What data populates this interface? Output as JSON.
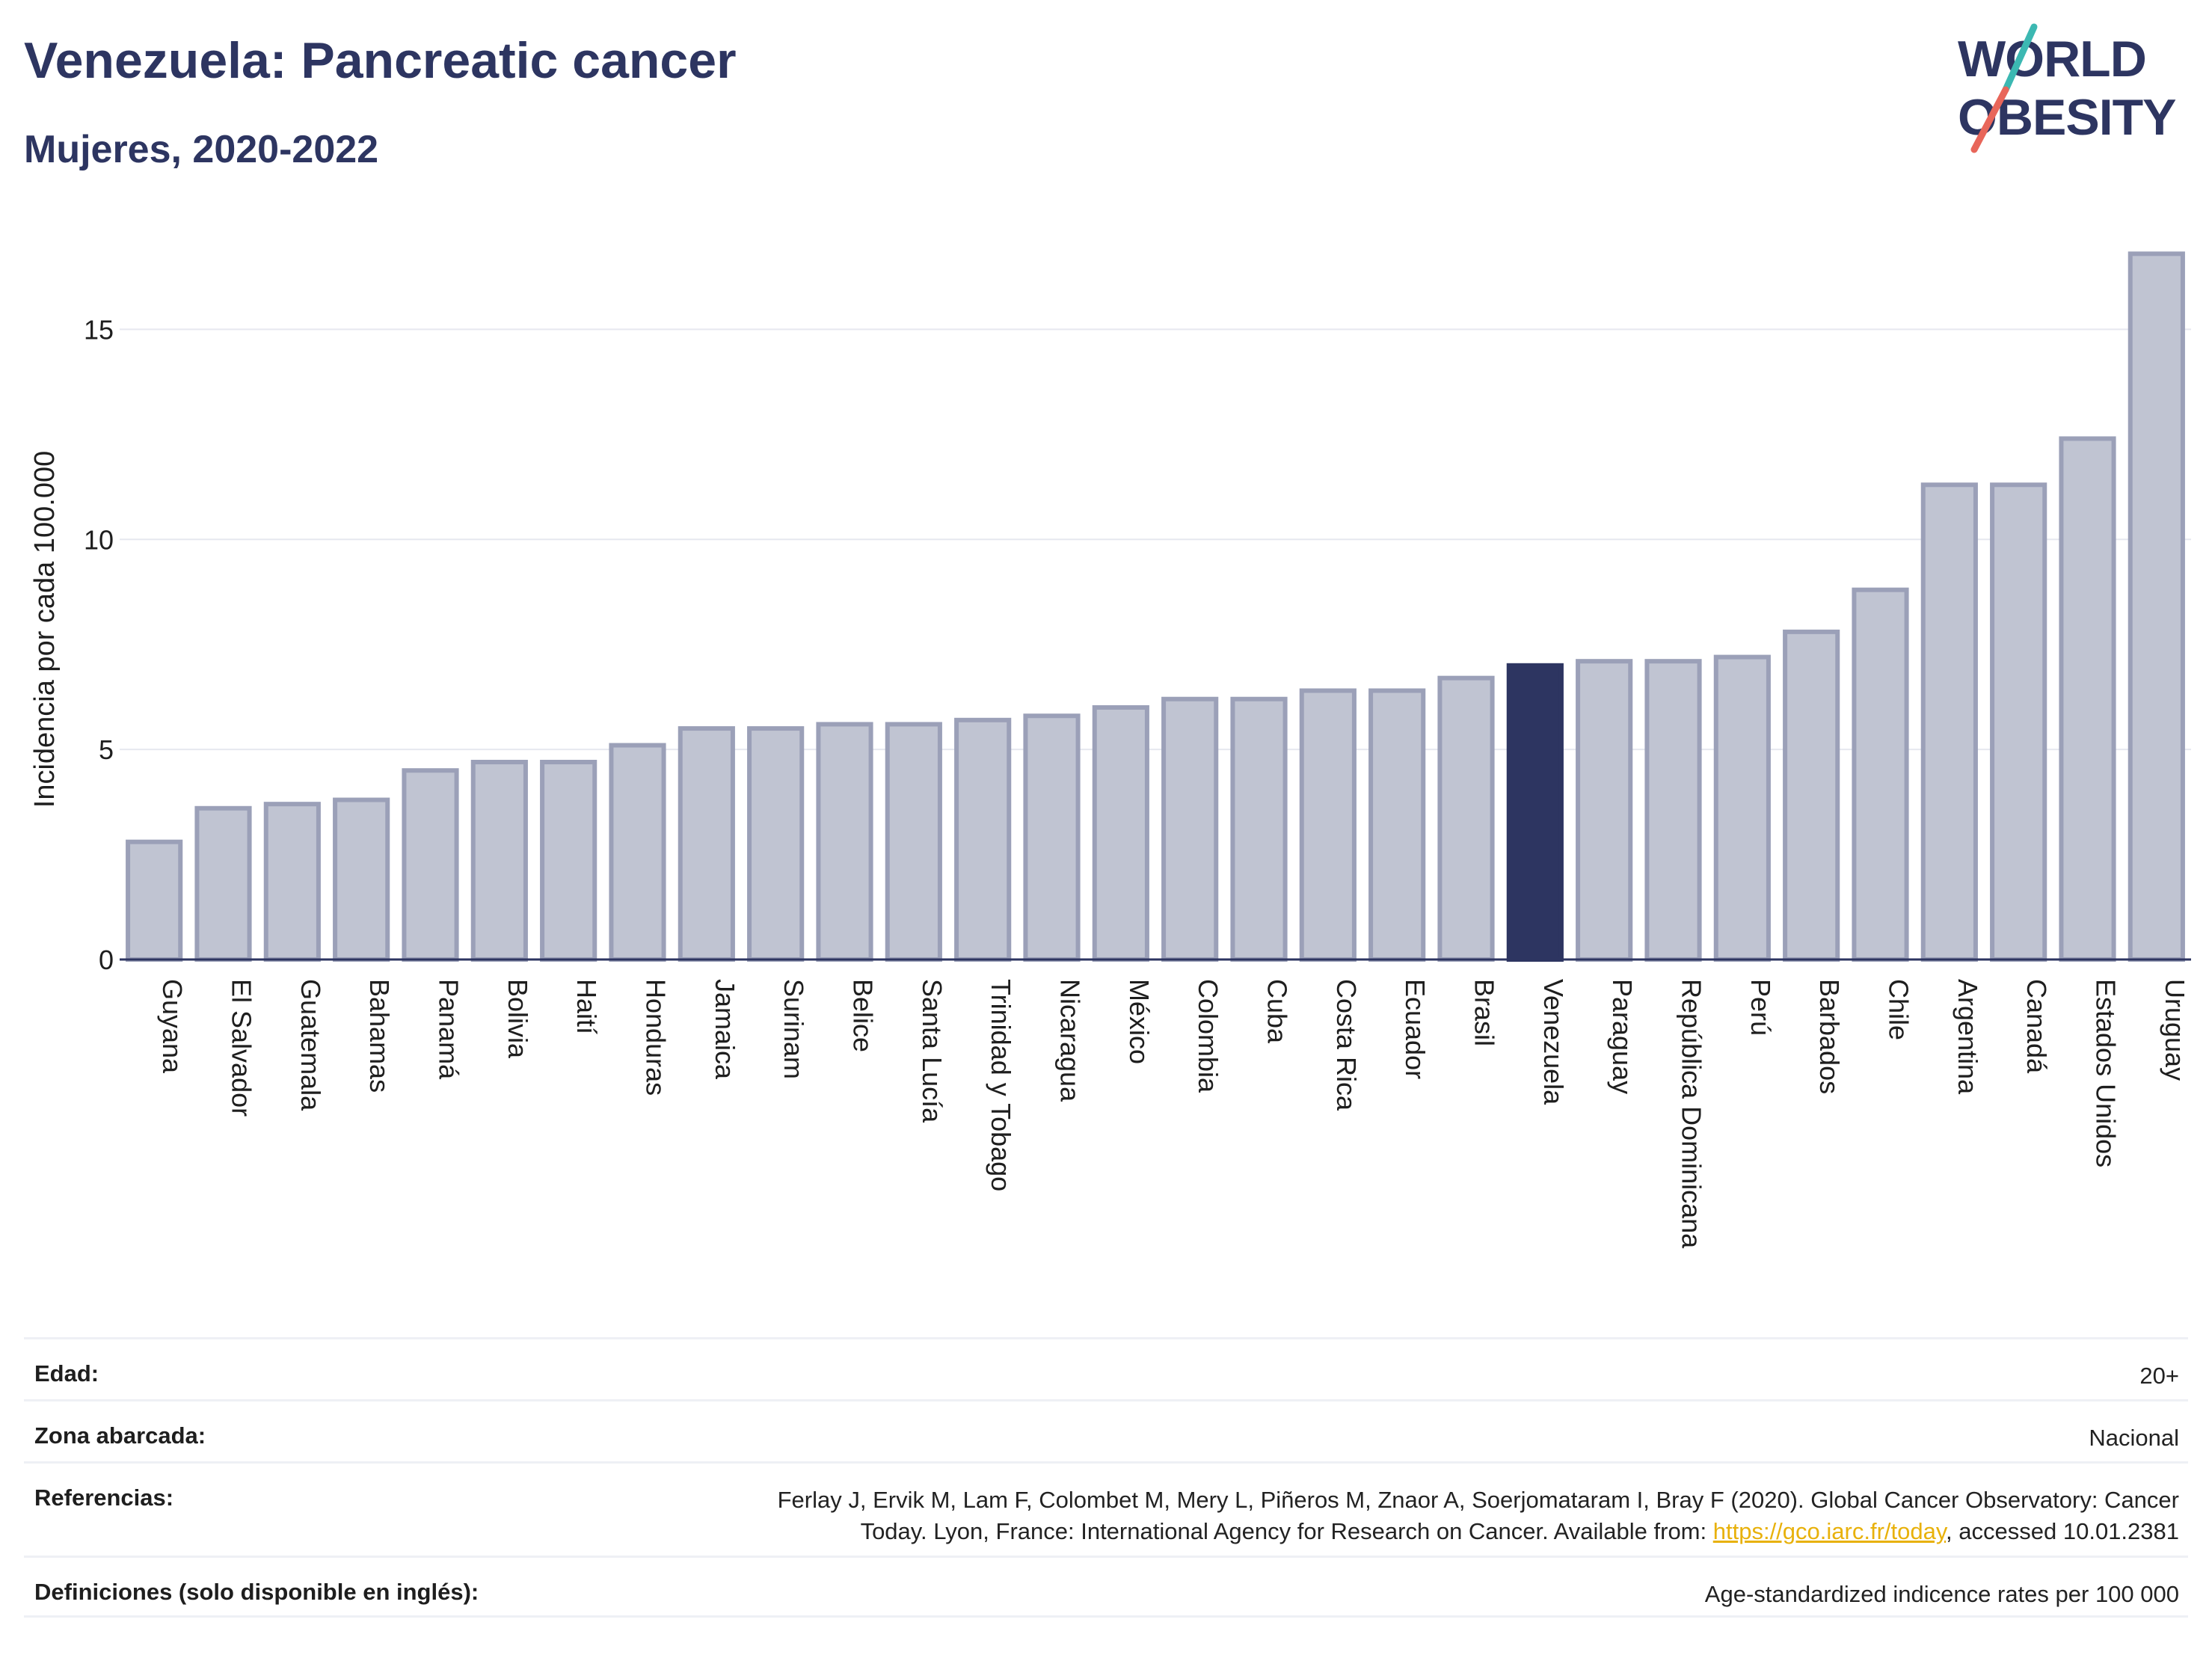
{
  "header": {
    "title": "Venezuela: Pancreatic cancer",
    "subtitle": "Mujeres, 2020-2022"
  },
  "logo": {
    "line1": "WORLD",
    "line2": "OBESITY",
    "colors": {
      "text": "#2d3561",
      "slash_top": "#3cb8b2",
      "slash_bottom": "#e8665a"
    }
  },
  "chart_data": {
    "type": "bar",
    "title": "Venezuela: Pancreatic cancer",
    "subtitle": "Mujeres, 2020-2022",
    "xlabel": "",
    "ylabel": "Incidencia por cada 100.000",
    "ylim": [
      0,
      17.5
    ],
    "yticks": [
      0,
      5,
      10,
      15
    ],
    "grid": true,
    "highlight": "Venezuela",
    "colors": {
      "bar": "#c0c4d2",
      "bar_border": "#9ba0b8",
      "highlight": "#2d3561",
      "grid": "#e6e8ef"
    },
    "categories": [
      "Guyana",
      "El Salvador",
      "Guatemala",
      "Bahamas",
      "Panamá",
      "Bolivia",
      "Haití",
      "Honduras",
      "Jamaica",
      "Surinam",
      "Belice",
      "Santa Lucía",
      "Trinidad y Tobago",
      "Nicaragua",
      "México",
      "Colombia",
      "Cuba",
      "Costa Rica",
      "Ecuador",
      "Brasil",
      "Venezuela",
      "Paraguay",
      "República Dominicana",
      "Perú",
      "Barbados",
      "Chile",
      "Argentina",
      "Canadá",
      "Estados Unidos",
      "Uruguay"
    ],
    "values": [
      2.8,
      3.6,
      3.7,
      3.8,
      4.5,
      4.7,
      4.7,
      5.1,
      5.5,
      5.5,
      5.6,
      5.6,
      5.7,
      5.8,
      6.0,
      6.2,
      6.2,
      6.4,
      6.4,
      6.7,
      7.0,
      7.1,
      7.1,
      7.2,
      7.8,
      8.8,
      11.3,
      11.3,
      12.4,
      16.8
    ]
  },
  "footer": {
    "age_label": "Edad:",
    "age_value": "20+",
    "area_label": "Zona abarcada:",
    "area_value": "Nacional",
    "refs_label": "Referencias:",
    "refs_line1": "Ferlay J, Ervik M, Lam F, Colombet M, Mery L, Piñeros M, Znaor A, Soerjomataram I, Bray F (2020). Global Cancer Observatory: Cancer",
    "refs_line2_pre": "Today. Lyon, France: International Agency for Research on Cancer. Available from: ",
    "refs_link": "https://gco.iarc.fr/today",
    "refs_line2_post": ", accessed 10.01.2381",
    "defs_label": "Definiciones (solo disponible en inglés):",
    "defs_value": "Age-standardized indicence rates per 100 000"
  }
}
